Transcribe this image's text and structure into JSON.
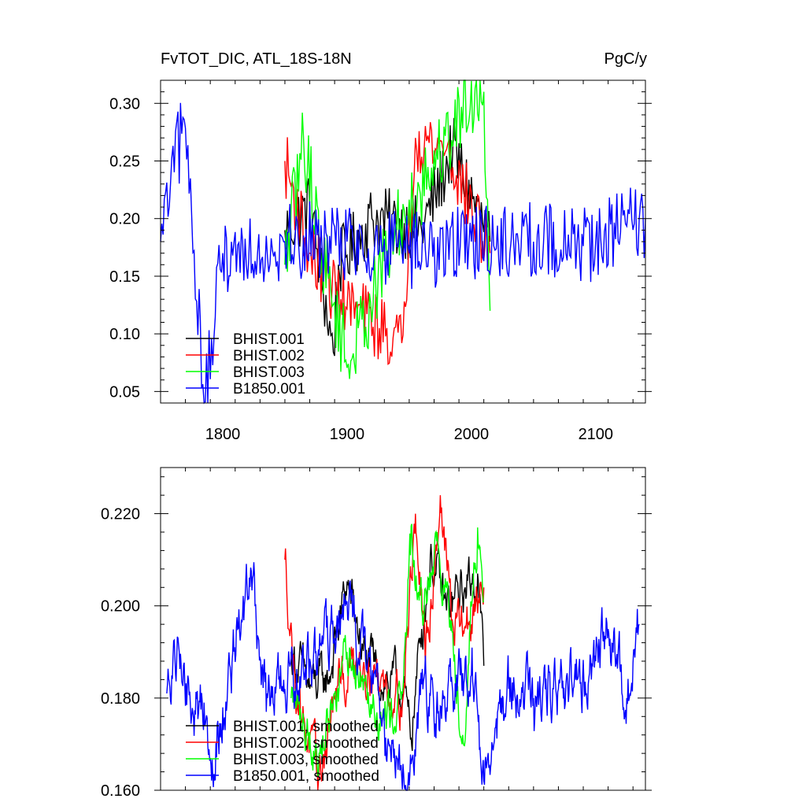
{
  "header": {
    "title": "FvTOT_DIC, ATL_18S-18N",
    "units": "PgC/y"
  },
  "chart_data": [
    {
      "type": "line",
      "title": "FvTOT_DIC, ATL_18S-18N",
      "units": "PgC/y",
      "xlabel": "",
      "ylabel": "",
      "xlim": [
        1750,
        2140
      ],
      "ylim": [
        0.04,
        0.32
      ],
      "xticks": [
        1800,
        1900,
        2000,
        2100
      ],
      "yticks": [
        0.05,
        0.1,
        0.15,
        0.2,
        0.25,
        0.3
      ],
      "ytick_labels": [
        "0.05",
        "0.10",
        "0.15",
        "0.20",
        "0.25",
        "0.30"
      ],
      "xtick_labels": [
        "1800",
        "1900",
        "2000",
        "2100"
      ],
      "grid": false,
      "legend_position": "bottom-left",
      "series": [
        {
          "name": "BHIST.001",
          "color": "#000000",
          "x": [
            1850,
            2015
          ],
          "anchors": [
            [
              1850,
              0.19
            ],
            [
              1870,
              0.21
            ],
            [
              1889,
              0.084
            ],
            [
              1893,
              0.16
            ],
            [
              1920,
              0.2
            ],
            [
              1960,
              0.19
            ],
            [
              1985,
              0.26
            ],
            [
              2015,
              0.18
            ]
          ],
          "noise": 0.03
        },
        {
          "name": "BHIST.002",
          "color": "#ff0000",
          "x": [
            1850,
            2015
          ],
          "anchors": [
            [
              1850,
              0.25
            ],
            [
              1870,
              0.17
            ],
            [
              1895,
              0.13
            ],
            [
              1944,
              0.092
            ],
            [
              1955,
              0.27
            ],
            [
              1980,
              0.26
            ],
            [
              2015,
              0.17
            ]
          ],
          "noise": 0.03
        },
        {
          "name": "BHIST.003",
          "color": "#00ff00",
          "x": [
            1850,
            2015
          ],
          "anchors": [
            [
              1850,
              0.16
            ],
            [
              1865,
              0.27
            ],
            [
              1880,
              0.17
            ],
            [
              1901,
              0.074
            ],
            [
              1940,
              0.19
            ],
            [
              2003,
              0.313
            ],
            [
              2010,
              0.31
            ],
            [
              2015,
              0.12
            ]
          ],
          "noise": 0.035
        },
        {
          "name": "B1850.001",
          "color": "#0000ff",
          "x": [
            1750,
            2140
          ],
          "anchors": [
            [
              1750,
              0.18
            ],
            [
              1769,
              0.286
            ],
            [
              1786,
              0.041
            ],
            [
              1800,
              0.17
            ],
            [
              1850,
              0.18
            ],
            [
              1900,
              0.18
            ],
            [
              1950,
              0.17
            ],
            [
              2000,
              0.18
            ],
            [
              2050,
              0.18
            ],
            [
              2100,
              0.18
            ],
            [
              2140,
              0.2
            ]
          ],
          "noise": 0.035
        }
      ]
    },
    {
      "type": "line",
      "title": "",
      "xlabel": "",
      "ylabel": "",
      "xlim": [
        1750,
        2140
      ],
      "ylim": [
        0.16,
        0.23
      ],
      "xticks": [
        1800,
        1900,
        2000,
        2100
      ],
      "yticks": [
        0.16,
        0.18,
        0.2,
        0.22
      ],
      "ytick_labels": [
        "0.160",
        "0.180",
        "0.200",
        "0.220"
      ],
      "grid": false,
      "legend_position": "bottom-left",
      "series": [
        {
          "name": "BHIST.001, smoothed",
          "color": "#000000",
          "x": [
            1855,
            2010
          ],
          "anchors": [
            [
              1855,
              0.19
            ],
            [
              1870,
              0.182
            ],
            [
              1885,
              0.184
            ],
            [
              1900,
              0.205
            ],
            [
              1915,
              0.188
            ],
            [
              1930,
              0.184
            ],
            [
              1945,
              0.182
            ],
            [
              1951,
              0.171
            ],
            [
              1960,
              0.195
            ],
            [
              1967,
              0.211
            ],
            [
              1980,
              0.199
            ],
            [
              1995,
              0.204
            ],
            [
              2005,
              0.207
            ],
            [
              2010,
              0.187
            ]
          ],
          "noise": 0.004
        },
        {
          "name": "BHIST.002, smoothed",
          "color": "#ff0000",
          "x": [
            1850,
            2010
          ],
          "anchors": [
            [
              1850,
              0.21
            ],
            [
              1858,
              0.185
            ],
            [
              1865,
              0.176
            ],
            [
              1877,
              0.162
            ],
            [
              1890,
              0.18
            ],
            [
              1910,
              0.19
            ],
            [
              1930,
              0.183
            ],
            [
              1945,
              0.18
            ],
            [
              1955,
              0.22
            ],
            [
              1963,
              0.187
            ],
            [
              1975,
              0.224
            ],
            [
              1985,
              0.196
            ],
            [
              2000,
              0.196
            ],
            [
              2010,
              0.204
            ]
          ],
          "noise": 0.004
        },
        {
          "name": "BHIST.003, smoothed",
          "color": "#00ff00",
          "x": [
            1855,
            2010
          ],
          "anchors": [
            [
              1855,
              0.18
            ],
            [
              1865,
              0.175
            ],
            [
              1878,
              0.168
            ],
            [
              1890,
              0.181
            ],
            [
              1900,
              0.19
            ],
            [
              1915,
              0.185
            ],
            [
              1930,
              0.175
            ],
            [
              1945,
              0.182
            ],
            [
              1951,
              0.211
            ],
            [
              1960,
              0.199
            ],
            [
              1972,
              0.214
            ],
            [
              1983,
              0.197
            ],
            [
              1993,
              0.172
            ],
            [
              2005,
              0.217
            ],
            [
              2010,
              0.201
            ]
          ],
          "noise": 0.004
        },
        {
          "name": "B1850.001, smoothed",
          "color": "#0000ff",
          "x": [
            1755,
            2135
          ],
          "anchors": [
            [
              1755,
              0.181
            ],
            [
              1765,
              0.19
            ],
            [
              1775,
              0.176
            ],
            [
              1785,
              0.179
            ],
            [
              1790,
              0.167
            ],
            [
              1800,
              0.178
            ],
            [
              1815,
              0.197
            ],
            [
              1824,
              0.206
            ],
            [
              1835,
              0.177
            ],
            [
              1845,
              0.184
            ],
            [
              1860,
              0.181
            ],
            [
              1875,
              0.19
            ],
            [
              1890,
              0.193
            ],
            [
              1900,
              0.201
            ],
            [
              1915,
              0.188
            ],
            [
              1930,
              0.174
            ],
            [
              1950,
              0.161
            ],
            [
              1960,
              0.183
            ],
            [
              1980,
              0.178
            ],
            [
              2000,
              0.185
            ],
            [
              2010,
              0.162
            ],
            [
              2030,
              0.182
            ],
            [
              2050,
              0.18
            ],
            [
              2070,
              0.182
            ],
            [
              2085,
              0.184
            ],
            [
              2100,
              0.188
            ],
            [
              2110,
              0.195
            ],
            [
              2125,
              0.18
            ],
            [
              2135,
              0.196
            ]
          ],
          "noise": 0.005
        }
      ]
    }
  ]
}
